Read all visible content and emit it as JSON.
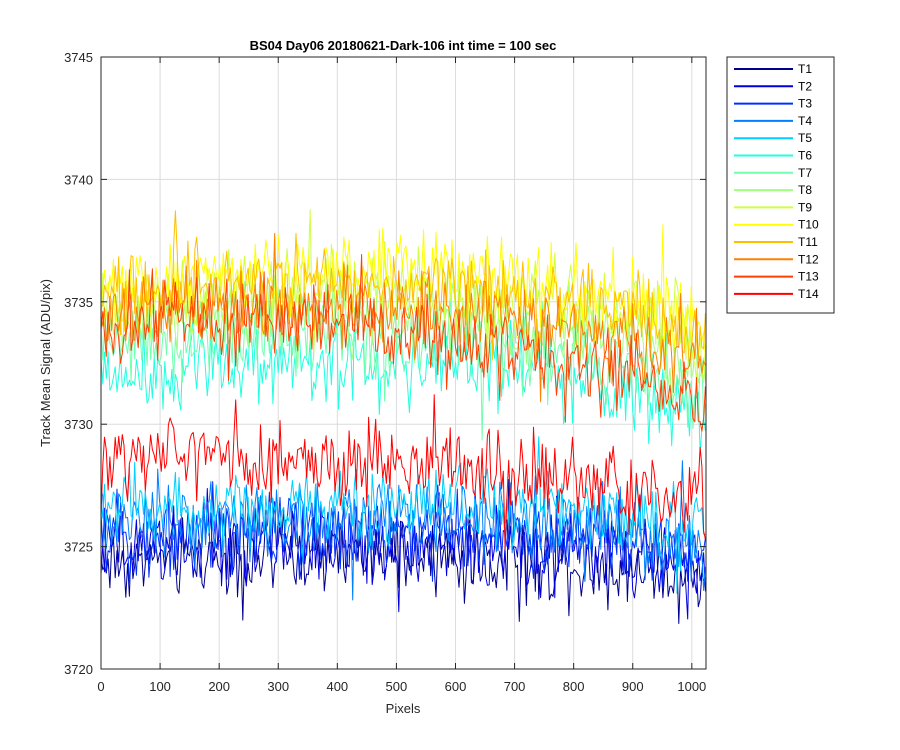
{
  "chart_data": {
    "type": "line",
    "title": "BS04 Day06 20180621-Dark-106 int time = 100 sec",
    "xlabel": "Pixels",
    "ylabel": "Track Mean Signal (ADU/pix)",
    "xlim": [
      0,
      1024
    ],
    "ylim": [
      3720,
      3745
    ],
    "xticks": [
      0,
      100,
      200,
      300,
      400,
      500,
      600,
      700,
      800,
      900,
      1000
    ],
    "yticks": [
      3720,
      3725,
      3730,
      3735,
      3740,
      3745
    ],
    "grid": true,
    "legend_position": "outside-top-right",
    "series": [
      {
        "name": "T1",
        "color": "#00008F",
        "x": [
          0,
          100,
          200,
          300,
          400,
          500,
          600,
          700,
          800,
          900,
          1000,
          1024
        ],
        "values": [
          3724.3,
          3724.5,
          3724.6,
          3724.6,
          3724.6,
          3724.6,
          3724.5,
          3724.4,
          3724.3,
          3724.2,
          3723.8,
          3723.6
        ]
      },
      {
        "name": "T2",
        "color": "#0000DF",
        "x": [
          0,
          100,
          200,
          300,
          400,
          500,
          600,
          700,
          800,
          900,
          1000,
          1024
        ],
        "values": [
          3724.8,
          3725.0,
          3725.1,
          3725.1,
          3725.1,
          3725.1,
          3725.0,
          3724.9,
          3724.8,
          3724.6,
          3724.2,
          3724.0
        ]
      },
      {
        "name": "T3",
        "color": "#0030FF",
        "x": [
          0,
          100,
          200,
          300,
          400,
          500,
          600,
          700,
          800,
          900,
          1000,
          1024
        ],
        "values": [
          3725.3,
          3725.5,
          3725.6,
          3725.6,
          3725.6,
          3725.6,
          3725.5,
          3725.4,
          3725.3,
          3725.1,
          3724.7,
          3724.5
        ]
      },
      {
        "name": "T4",
        "color": "#0080FF",
        "x": [
          0,
          100,
          200,
          300,
          400,
          500,
          600,
          700,
          800,
          900,
          1000,
          1024
        ],
        "values": [
          3725.8,
          3726.0,
          3726.1,
          3726.1,
          3726.1,
          3726.1,
          3726.0,
          3725.9,
          3725.8,
          3725.6,
          3725.2,
          3725.0
        ]
      },
      {
        "name": "T5",
        "color": "#00CFFF",
        "x": [
          0,
          100,
          200,
          300,
          400,
          500,
          600,
          700,
          800,
          900,
          1000,
          1024
        ],
        "values": [
          3726.5,
          3726.7,
          3726.8,
          3726.8,
          3726.8,
          3726.8,
          3726.7,
          3726.6,
          3726.5,
          3726.3,
          3725.9,
          3725.7
        ]
      },
      {
        "name": "T6",
        "color": "#20FFDF",
        "x": [
          0,
          100,
          200,
          300,
          400,
          500,
          600,
          700,
          800,
          900,
          1000,
          1024
        ],
        "values": [
          3732.0,
          3732.3,
          3732.5,
          3732.5,
          3732.5,
          3732.5,
          3732.3,
          3732.1,
          3731.8,
          3731.4,
          3730.6,
          3730.2
        ]
      },
      {
        "name": "T7",
        "color": "#70FFAF",
        "x": [
          0,
          100,
          200,
          300,
          400,
          500,
          600,
          700,
          800,
          900,
          1000,
          1024
        ],
        "values": [
          3733.0,
          3733.3,
          3733.5,
          3733.5,
          3733.5,
          3733.5,
          3733.3,
          3733.1,
          3732.8,
          3732.4,
          3731.6,
          3731.2
        ]
      },
      {
        "name": "T8",
        "color": "#A0FF80",
        "x": [
          0,
          100,
          200,
          300,
          400,
          500,
          600,
          700,
          800,
          900,
          1000,
          1024
        ],
        "values": [
          3734.0,
          3734.3,
          3734.5,
          3734.5,
          3734.5,
          3734.5,
          3734.3,
          3734.1,
          3733.8,
          3733.4,
          3732.6,
          3732.2
        ]
      },
      {
        "name": "T9",
        "color": "#CFFF40",
        "x": [
          0,
          100,
          200,
          300,
          400,
          500,
          600,
          700,
          800,
          900,
          1000,
          1024
        ],
        "values": [
          3735.0,
          3735.3,
          3735.5,
          3735.5,
          3735.5,
          3735.5,
          3735.3,
          3735.1,
          3734.8,
          3734.4,
          3733.6,
          3733.2
        ]
      },
      {
        "name": "T10",
        "color": "#FFFF00",
        "x": [
          0,
          100,
          200,
          300,
          400,
          500,
          600,
          700,
          800,
          900,
          1000,
          1024
        ],
        "values": [
          3735.8,
          3736.1,
          3736.3,
          3736.3,
          3736.3,
          3736.3,
          3736.1,
          3735.9,
          3735.6,
          3735.2,
          3734.4,
          3734.0
        ]
      },
      {
        "name": "T11",
        "color": "#FFBF00",
        "x": [
          0,
          100,
          200,
          300,
          400,
          500,
          600,
          700,
          800,
          900,
          1000,
          1024
        ],
        "values": [
          3735.3,
          3735.6,
          3735.8,
          3735.8,
          3735.8,
          3735.8,
          3735.6,
          3735.4,
          3735.1,
          3734.7,
          3733.9,
          3733.5
        ]
      },
      {
        "name": "T12",
        "color": "#FF8000",
        "x": [
          0,
          100,
          200,
          300,
          400,
          500,
          600,
          700,
          800,
          900,
          1000,
          1024
        ],
        "values": [
          3734.5,
          3734.7,
          3734.8,
          3734.8,
          3734.7,
          3734.6,
          3734.4,
          3734.2,
          3733.9,
          3733.5,
          3732.7,
          3732.3
        ]
      },
      {
        "name": "T13",
        "color": "#FF4000",
        "x": [
          0,
          100,
          200,
          300,
          400,
          500,
          600,
          700,
          800,
          900,
          1000,
          1024
        ],
        "values": [
          3733.5,
          3734.2,
          3734.4,
          3734.3,
          3734.1,
          3733.8,
          3733.4,
          3733.0,
          3732.6,
          3732.0,
          3731.0,
          3730.5
        ]
      },
      {
        "name": "T14",
        "color": "#FF0000",
        "x": [
          0,
          100,
          200,
          300,
          400,
          500,
          600,
          700,
          800,
          900,
          1000,
          1024
        ],
        "values": [
          3728.5,
          3728.6,
          3728.6,
          3728.5,
          3728.4,
          3728.3,
          3728.1,
          3727.9,
          3727.6,
          3727.3,
          3726.8,
          3726.5
        ]
      }
    ]
  }
}
